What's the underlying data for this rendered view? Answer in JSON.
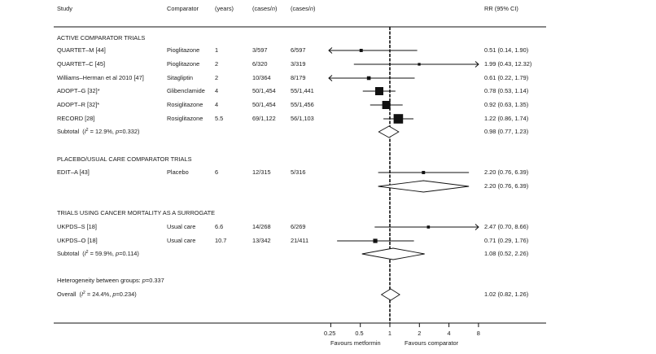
{
  "header": {
    "study": "Study",
    "comparator": "Comparator",
    "years": "(years)",
    "cases_metformin": "(cases/n)",
    "cases_comparator": "(cases/n)",
    "rr": "RR (95% CI)"
  },
  "chart_data": {
    "type": "forest",
    "scale": "log2",
    "x_ticks": [
      0.25,
      0.5,
      1,
      2,
      4,
      8
    ],
    "x_tick_labels": [
      "0.25",
      "0.5",
      "1",
      "2",
      "4",
      "8"
    ],
    "xlim": [
      0.25,
      16
    ],
    "reference_line": 1,
    "xlabel_left": "Favours metformin",
    "xlabel_right": "Favours comparator",
    "groups": [
      {
        "title": "ACTIVE COMPARATOR TRIALS",
        "studies": [
          {
            "study": "QUARTET–M [44]",
            "comparator": "Pioglitazone",
            "years": "1",
            "metformin": "3/597",
            "comp": "6/597",
            "rr": 0.51,
            "lo": 0.14,
            "hi": 1.9,
            "label": "0.51 (0.14, 1.90)",
            "weight": 0.6
          },
          {
            "study": "QUARTET–C [45]",
            "comparator": "Pioglitazone",
            "years": "2",
            "metformin": "6/320",
            "comp": "3/319",
            "rr": 1.99,
            "lo": 0.43,
            "hi": 12.32,
            "label": "1.99 (0.43, 12.32)",
            "weight": 0.4
          },
          {
            "study": "Williams–Herman et al 2010 [47]",
            "comparator": "Sitagliptin",
            "years": "2",
            "metformin": "10/364",
            "comp": "8/179",
            "rr": 0.61,
            "lo": 0.22,
            "hi": 1.79,
            "label": "0.61 (0.22, 1.79)",
            "weight": 0.8
          },
          {
            "study": "ADOPT–G [32]*",
            "comparator": "Glibenclamide",
            "years": "4",
            "metformin": "50/1,454",
            "comp": "55/1,441",
            "rr": 0.78,
            "lo": 0.53,
            "hi": 1.14,
            "label": "0.78 (0.53, 1.14)",
            "weight": 2.5
          },
          {
            "study": "ADOPT–R [32]*",
            "comparator": "Rosiglitazone",
            "years": "4",
            "metformin": "50/1,454",
            "comp": "55/1,456",
            "rr": 0.92,
            "lo": 0.63,
            "hi": 1.35,
            "label": "0.92 (0.63, 1.35)",
            "weight": 2.5
          },
          {
            "study": "RECORD [28]",
            "comparator": "Rosiglitazone",
            "years": "5.5",
            "metformin": "69/1,122",
            "comp": "56/1,103",
            "rr": 1.22,
            "lo": 0.86,
            "hi": 1.74,
            "label": "1.22 (0.86, 1.74)",
            "weight": 3.0
          }
        ],
        "subtotal": {
          "label_prefix": "Subtotal",
          "i2": "12.9%",
          "p": "0.332",
          "rr": 0.98,
          "lo": 0.77,
          "hi": 1.23,
          "label": "0.98 (0.77, 1.23)"
        }
      },
      {
        "title": "PLACEBO/USUAL CARE COMPARATOR TRIALS",
        "studies": [
          {
            "study": "EDIT–A [43]",
            "comparator": "Placebo",
            "years": "6",
            "metformin": "12/315",
            "comp": "5/316",
            "rr": 2.2,
            "lo": 0.76,
            "hi": 6.39,
            "label": "2.20 (0.76, 6.39)",
            "weight": 0.6
          }
        ],
        "subtotal": {
          "label_prefix": "",
          "rr": 2.2,
          "lo": 0.76,
          "hi": 6.39,
          "label": "2.20 (0.76, 6.39)"
        }
      },
      {
        "title": "TRIALS USING CANCER MORTALITY AS A SURROGATE",
        "studies": [
          {
            "study": "UKPDS–S [18]",
            "comparator": "Usual care",
            "years": "6.6",
            "metformin": "14/268",
            "comp": "6/269",
            "rr": 2.47,
            "lo": 0.7,
            "hi": 8.66,
            "label": "2.47 (0.70, 8.66)",
            "weight": 0.5
          },
          {
            "study": "UKPDS–O [18]",
            "comparator": "Usual care",
            "years": "10.7",
            "metformin": "13/342",
            "comp": "21/411",
            "rr": 0.71,
            "lo": 0.29,
            "hi": 1.76,
            "label": "0.71 (0.29, 1.76)",
            "weight": 1.0
          }
        ],
        "subtotal": {
          "label_prefix": "Subtotal",
          "i2": "59.9%",
          "p": "0.114",
          "rr": 1.08,
          "lo": 0.52,
          "hi": 2.26,
          "label": "1.08 (0.52, 2.26)"
        }
      }
    ],
    "heterogeneity_between_groups": {
      "label": "Heterogeneity between groups: ",
      "p": "0.337"
    },
    "overall": {
      "label_prefix": "Overall",
      "i2": "24.4%",
      "p": "0.234",
      "rr": 1.02,
      "lo": 0.82,
      "hi": 1.26,
      "label": "1.02 (0.82, 1.26)"
    }
  }
}
